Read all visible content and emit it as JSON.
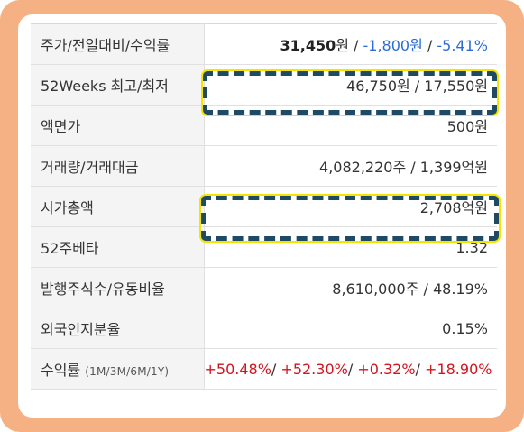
{
  "rows": [
    {
      "label": "주가/전일대비/수익률",
      "price": "31,450",
      "unit_won": "원",
      "sep": " / ",
      "change": "-1,800원",
      "rate": "-5.41%"
    },
    {
      "label": "52Weeks 최고/최저",
      "value": "46,750원 / 17,550원"
    },
    {
      "label": "액면가",
      "value": "500원"
    },
    {
      "label": "거래량/거래대금",
      "value": "4,082,220주 / 1,399억원"
    },
    {
      "label": "시가총액",
      "value": "2,708억원"
    },
    {
      "label": "52주베타",
      "value": "1.32"
    },
    {
      "label": "발행주식수/유동비율",
      "value": "8,610,000주 / 48.19%"
    },
    {
      "label": "외국인지분율",
      "value": "0.15%"
    },
    {
      "label": "수익률",
      "label_sub": "(1M/3M/6M/1Y)",
      "r1": "+50.48%",
      "r2": "+52.30%",
      "r3": "+0.32%",
      "r4": "+18.90%",
      "slash": "/ "
    }
  ],
  "colors": {
    "frame": "#f5b084",
    "highlight_border": "#1f4a66",
    "highlight_glow": "#f5e400",
    "negative": "#2a6bd4",
    "positive": "#d2141e"
  }
}
